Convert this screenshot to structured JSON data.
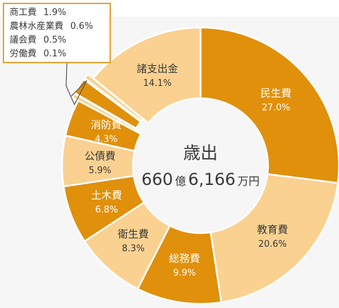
{
  "colors": {
    "dark": "#e0900a",
    "light": "#fad190",
    "text_dark": "#3a3a3a",
    "text_light": "#ffffff",
    "legend_border": "#e4a233",
    "background": "#f6f6f6",
    "top_band": "#ffffff"
  },
  "chart_data": {
    "type": "pie",
    "donut": true,
    "center_title": "歳出",
    "center_value": {
      "part1": "660",
      "unit1": "億",
      "part2": "6,166",
      "unit2": "万円"
    },
    "slices": [
      {
        "name": "民生費",
        "value": 27.0,
        "label": "27.0%",
        "shade": "dark"
      },
      {
        "name": "教育費",
        "value": 20.6,
        "label": "20.6%",
        "shade": "light"
      },
      {
        "name": "総務費",
        "value": 9.9,
        "label": "9.9%",
        "shade": "dark"
      },
      {
        "name": "衛生費",
        "value": 8.3,
        "label": "8.3%",
        "shade": "light"
      },
      {
        "name": "土木費",
        "value": 6.8,
        "label": "6.8%",
        "shade": "dark"
      },
      {
        "name": "公債費",
        "value": 5.9,
        "label": "5.9%",
        "shade": "light"
      },
      {
        "name": "消防費",
        "value": 4.3,
        "label": "4.3%",
        "shade": "dark"
      },
      {
        "name": "議会費",
        "value": 0.5,
        "label": "0.5%",
        "shade": "light"
      },
      {
        "name": "商工費",
        "value": 1.9,
        "label": "1.9%",
        "shade": "dark"
      },
      {
        "name": "労働費",
        "value": 0.1,
        "label": "0.1%",
        "shade": "light"
      },
      {
        "name": "農林水産業費",
        "value": 0.6,
        "label": "0.6%",
        "shade": "light"
      },
      {
        "name": "諸支出金",
        "value": 14.1,
        "label": "14.1%",
        "shade": "light"
      }
    ],
    "callout_box": [
      {
        "name": "商工費",
        "label": "1.9%"
      },
      {
        "name": "農林水産業費",
        "label": "0.6%"
      },
      {
        "name": "議会費",
        "label": "0.5%"
      },
      {
        "name": "労働費",
        "label": "0.1%"
      }
    ]
  }
}
